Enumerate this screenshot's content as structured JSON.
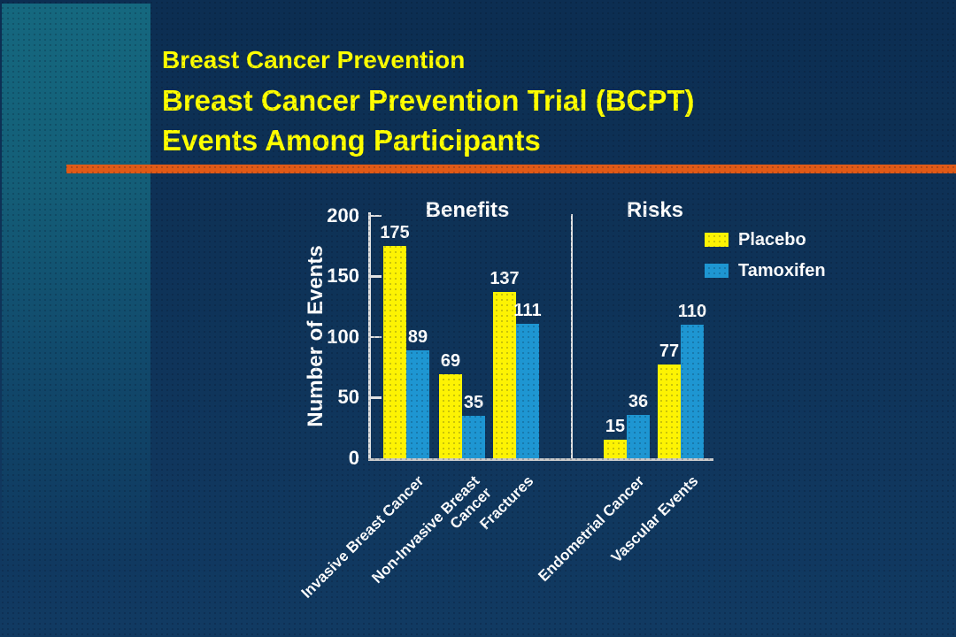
{
  "slide": {
    "title_lines": [
      "Breast Cancer Prevention",
      "Breast Cancer Prevention Trial (BCPT)",
      "Events Among Participants"
    ]
  },
  "colors": {
    "background_top": "#0c2e52",
    "background_bottom": "#113a62",
    "left_panel_teal": "#15687f",
    "accent_rule_orange": "#e05a17",
    "title_yellow": "#ffff00",
    "axis_gray": "#e3e3e3",
    "text_white": "#ffffff"
  },
  "chart_data": {
    "type": "bar",
    "title": "",
    "xlabel": "",
    "ylabel": "Number of Events",
    "ylim": [
      0,
      200
    ],
    "yticks": [
      0,
      50,
      100,
      150,
      200
    ],
    "grid": false,
    "legend_position": "top-right",
    "sections": [
      {
        "label": "Benefits",
        "category_indexes": [
          0,
          1,
          2
        ]
      },
      {
        "label": "Risks",
        "category_indexes": [
          3,
          4
        ]
      }
    ],
    "categories": [
      {
        "label": "Invasive Breast Cancer",
        "lines": [
          "Invasive Breast Cancer"
        ]
      },
      {
        "label": "Non-Invasive Breast Cancer",
        "lines": [
          "Non-Invasive Breast",
          "Cancer"
        ]
      },
      {
        "label": "Fractures",
        "lines": [
          "Fractures"
        ]
      },
      {
        "label": "Endometrial Cancer",
        "lines": [
          "Endometrial Cancer"
        ]
      },
      {
        "label": "Vascular Events",
        "lines": [
          "Vascular Events"
        ]
      }
    ],
    "series": [
      {
        "name": "Placebo",
        "color": "#fdf303",
        "values": [
          175,
          69,
          137,
          15,
          77
        ]
      },
      {
        "name": "Tamoxifen",
        "color": "#1e96d2",
        "values": [
          89,
          35,
          111,
          36,
          110
        ]
      }
    ]
  }
}
